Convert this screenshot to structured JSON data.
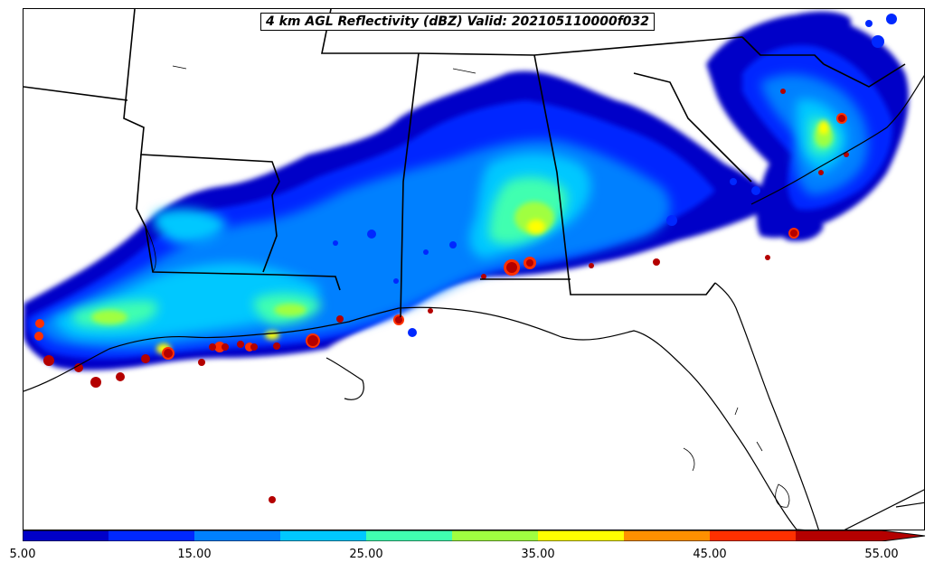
{
  "title": "4 km AGL Reflectivity (dBZ) Valid: 202105110000f032",
  "colorbar": {
    "min": 5.0,
    "max": 55.0,
    "extend": "max",
    "tick_labels": [
      "5.00",
      "15.00",
      "25.00",
      "35.00",
      "45.00",
      "55.00"
    ],
    "ticks": [
      5,
      15,
      25,
      35,
      45,
      55
    ],
    "levels": [
      5,
      10,
      15,
      20,
      25,
      30,
      35,
      40,
      45,
      50,
      55
    ],
    "colors": [
      "#0000c8",
      "#0028ff",
      "#0080ff",
      "#00c8ff",
      "#40ffb0",
      "#a0ff40",
      "#ffff00",
      "#ff9000",
      "#ff3000",
      "#b40000",
      "#b40000"
    ]
  }
}
